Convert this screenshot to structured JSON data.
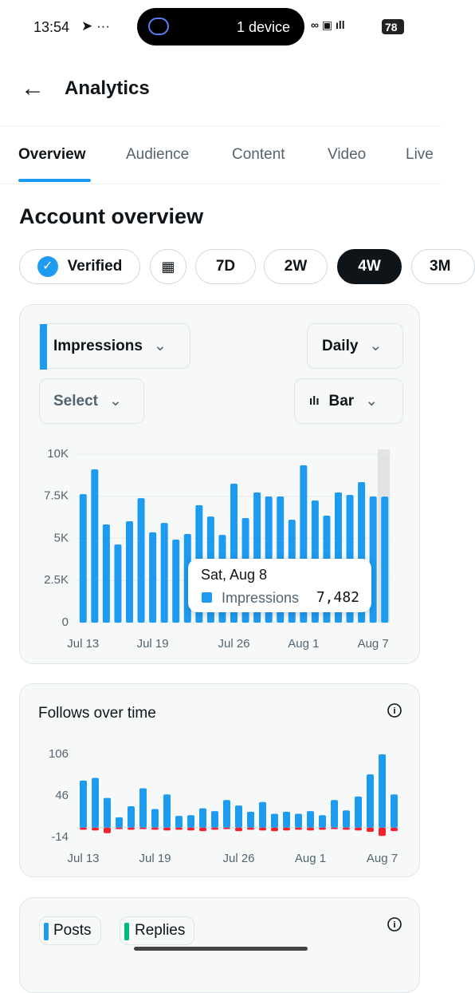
{
  "status_bar": {
    "time": "13:54",
    "island": "1 device",
    "battery": "78"
  },
  "header": {
    "title": "Analytics"
  },
  "tabs": [
    "Overview",
    "Audience",
    "Content",
    "Video",
    "Live"
  ],
  "section_title": "Account overview",
  "filters": [
    "Verified",
    "7D",
    "2W",
    "4W",
    "3M"
  ],
  "impressions_card": {
    "metric": "Impressions",
    "interval": "Daily",
    "select": "Select",
    "chart_type": "Bar"
  },
  "chart_data": [
    {
      "type": "bar",
      "categories": [
        "Jul 13",
        null,
        null,
        null,
        null,
        null,
        "Jul 19",
        null,
        null,
        null,
        null,
        null,
        null,
        "Jul 26",
        null,
        null,
        null,
        null,
        null,
        "Aug 1",
        null,
        null,
        null,
        null,
        null,
        "Aug 7",
        null
      ],
      "series": [
        {
          "name": "Impressions",
          "color": "#1d9bf0",
          "values": [
            7630,
            9100,
            5830,
            4640,
            6020,
            7390,
            5360,
            5920,
            4930,
            5260,
            6970,
            6300,
            5210,
            8250,
            6210,
            7730,
            7490,
            7490,
            6110,
            9340,
            7250,
            6350,
            7730,
            7580,
            8340,
            7490,
            7482
          ]
        }
      ],
      "ylim": [
        0,
        10000
      ],
      "yticks": [
        0,
        {
          "value": 2500,
          "label": "2.5K"
        },
        {
          "value": 5000,
          "label": "5K"
        },
        {
          "value": 7500,
          "label": "7.5K"
        },
        {
          "value": 10000,
          "label": "10K"
        }
      ],
      "grid": true,
      "tooltip": {
        "title": "Sat, Aug 8",
        "value_label": "7,482"
      }
    },
    {
      "type": "bar",
      "title": "Follows over time",
      "categories": [
        "Jul 13",
        null,
        null,
        null,
        null,
        null,
        "Jul 19",
        null,
        null,
        null,
        null,
        null,
        null,
        "Jul 26",
        null,
        null,
        null,
        null,
        null,
        "Aug 1",
        null,
        null,
        null,
        null,
        null,
        "Aug 7",
        null
      ],
      "series": [
        {
          "color": "#1d9bf0",
          "values": [
            68,
            72,
            43,
            15,
            31,
            57,
            27,
            48,
            17,
            18,
            28,
            24,
            40,
            32,
            23,
            37,
            20,
            23,
            20,
            24,
            18,
            40,
            25,
            45,
            77,
            106,
            48
          ]
        },
        {
          "color": "#f4212e",
          "values": [
            -3,
            -4,
            -8,
            -2,
            -3,
            -2,
            -3,
            -4,
            -3,
            -4,
            -5,
            -3,
            -2,
            -5,
            -3,
            -4,
            -5,
            -4,
            -3,
            -4,
            -3,
            -2,
            -3,
            -4,
            -6,
            -12,
            -5
          ]
        }
      ],
      "ylim": [
        -14,
        106
      ],
      "yticks": [
        -14,
        46,
        106
      ],
      "grid": false
    }
  ],
  "posts_card": {
    "legend": [
      "Posts",
      "Replies"
    ]
  }
}
